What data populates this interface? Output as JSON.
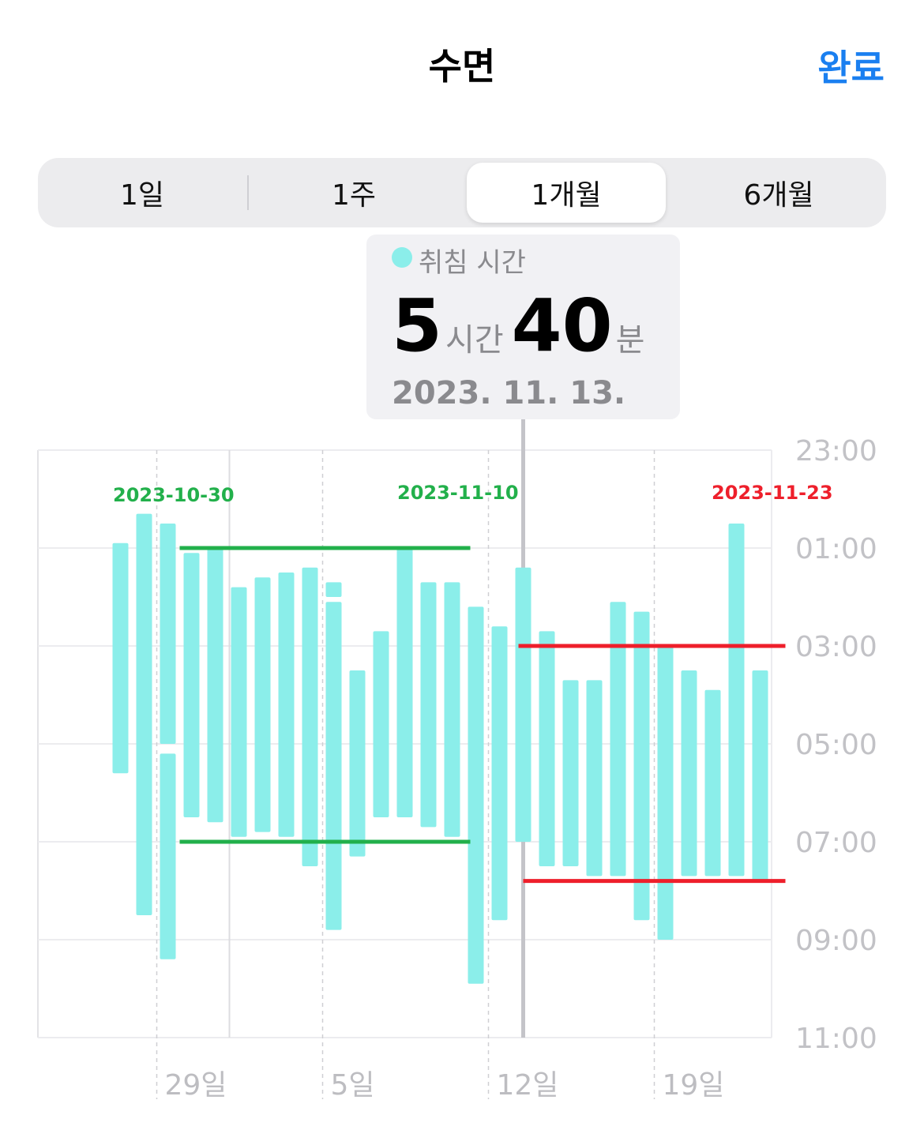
{
  "header": {
    "title": "수면",
    "done_label": "완료"
  },
  "segments": [
    "1일",
    "1주",
    "1개월",
    "6개월"
  ],
  "selected_segment": "1개월",
  "tooltip": {
    "label": "취침 시간",
    "hours": "5",
    "hours_unit": "시간",
    "minutes": "40",
    "minutes_unit": "분",
    "date": "2023. 11. 13."
  },
  "colors": {
    "bar": "#8beeea",
    "accent": "#1a7ff0",
    "green": "#22b04b",
    "red": "#ee1f2b"
  },
  "annotations": [
    {
      "text": "2023-10-30",
      "color": "#22b04b"
    },
    {
      "text": "2023-11-10",
      "color": "#22b04b"
    },
    {
      "text": "2023-11-23",
      "color": "#ee1f2b"
    }
  ],
  "chart_data": {
    "type": "bar",
    "description_axis": "time of day, 23:00 to 11:00",
    "y_ticks": [
      "23:00",
      "01:00",
      "03:00",
      "05:00",
      "07:00",
      "09:00",
      "11:00"
    ],
    "x_ticks": [
      "29일",
      "5일",
      "12일",
      "19일"
    ],
    "ylim_hours_after_2300": [
      0,
      12
    ],
    "grid": true,
    "selected_date": "2023-11-13",
    "bars": [
      {
        "date": "2023-10-27",
        "segments": [
          [
            1.9,
            6.6
          ]
        ]
      },
      {
        "date": "2023-10-28",
        "segments": [
          [
            1.3,
            9.5
          ]
        ]
      },
      {
        "date": "2023-10-29",
        "segments": [
          [
            1.5,
            6.0
          ],
          [
            6.2,
            10.4
          ]
        ]
      },
      {
        "date": "2023-10-30",
        "segments": [
          [
            2.1,
            7.5
          ]
        ]
      },
      {
        "date": "2023-10-31",
        "segments": [
          [
            2.0,
            7.6
          ]
        ]
      },
      {
        "date": "2023-11-01",
        "segments": [
          [
            2.8,
            7.9
          ]
        ]
      },
      {
        "date": "2023-11-02",
        "segments": [
          [
            2.6,
            7.8
          ]
        ]
      },
      {
        "date": "2023-11-03",
        "segments": [
          [
            2.5,
            7.9
          ]
        ]
      },
      {
        "date": "2023-11-04",
        "segments": [
          [
            2.4,
            8.5
          ]
        ]
      },
      {
        "date": "2023-11-05",
        "segments": [
          [
            2.7,
            3.0
          ],
          [
            3.1,
            9.8
          ]
        ]
      },
      {
        "date": "2023-11-06",
        "segments": [
          [
            4.5,
            8.3
          ]
        ]
      },
      {
        "date": "2023-11-07",
        "segments": [
          [
            3.7,
            7.5
          ]
        ]
      },
      {
        "date": "2023-11-08",
        "segments": [
          [
            2.0,
            7.5
          ]
        ]
      },
      {
        "date": "2023-11-09",
        "segments": [
          [
            2.7,
            7.7
          ]
        ]
      },
      {
        "date": "2023-11-10",
        "segments": [
          [
            2.7,
            7.9
          ]
        ]
      },
      {
        "date": "2023-11-11",
        "segments": [
          [
            3.2,
            10.9
          ]
        ]
      },
      {
        "date": "2023-11-12",
        "segments": [
          [
            3.6,
            9.6
          ]
        ]
      },
      {
        "date": "2023-11-13",
        "segments": [
          [
            2.4,
            8.0
          ]
        ]
      },
      {
        "date": "2023-11-14",
        "segments": [
          [
            3.7,
            8.5
          ]
        ]
      },
      {
        "date": "2023-11-15",
        "segments": [
          [
            4.7,
            8.5
          ]
        ]
      },
      {
        "date": "2023-11-16",
        "segments": [
          [
            4.7,
            8.7
          ]
        ]
      },
      {
        "date": "2023-11-17",
        "segments": [
          [
            3.1,
            8.7
          ]
        ]
      },
      {
        "date": "2023-11-18",
        "segments": [
          [
            3.3,
            9.6
          ]
        ]
      },
      {
        "date": "2023-11-19",
        "segments": [
          [
            4.0,
            10.0
          ]
        ]
      },
      {
        "date": "2023-11-20",
        "segments": [
          [
            4.5,
            8.7
          ]
        ]
      },
      {
        "date": "2023-11-21",
        "segments": [
          [
            4.9,
            8.7
          ]
        ]
      },
      {
        "date": "2023-11-22",
        "segments": [
          [
            1.5,
            8.7
          ]
        ]
      },
      {
        "date": "2023-11-23",
        "segments": [
          [
            4.5,
            8.8
          ]
        ]
      }
    ],
    "reference_lines": [
      {
        "label": "2023-10-30",
        "color": "#22b04b",
        "y_hours": 2.0,
        "from_index": 2.5,
        "to_index": 14.5
      },
      {
        "label": "2023-10-30",
        "color": "#22b04b",
        "y_hours": 8.0,
        "from_index": 2.5,
        "to_index": 14.5
      },
      {
        "label": "2023-11-23",
        "color": "#ee1f2b",
        "y_hours": 4.0,
        "from_index": 16.8,
        "to_index": 27.8
      },
      {
        "label": "2023-11-23",
        "color": "#ee1f2b",
        "y_hours": 8.8,
        "from_index": 17.0,
        "to_index": 27.8
      }
    ]
  }
}
